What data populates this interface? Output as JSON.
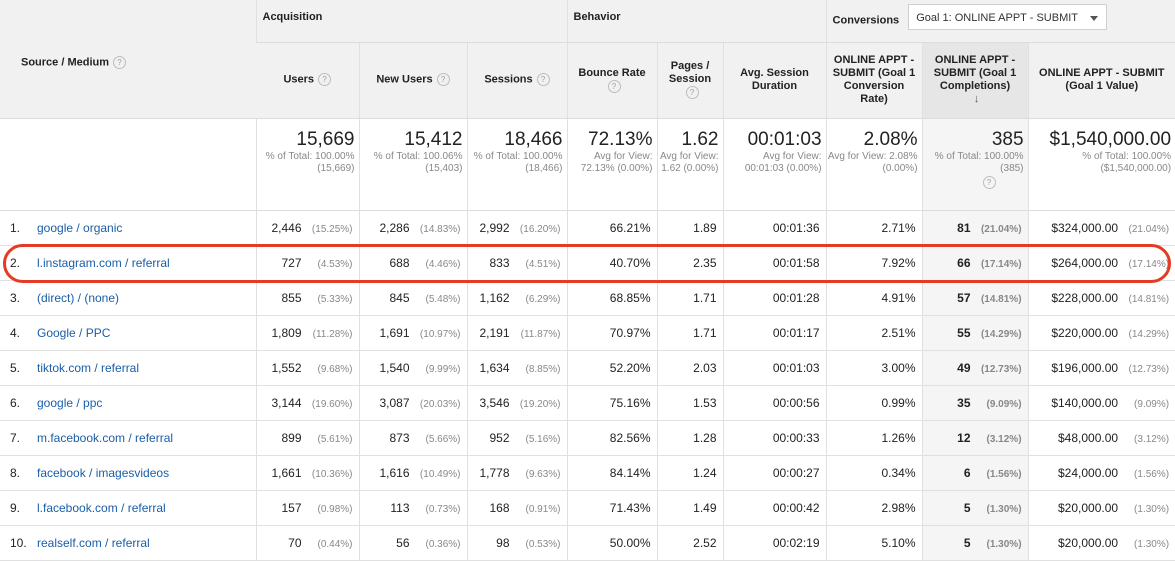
{
  "header": {
    "source_medium": "Source / Medium",
    "group_acquisition": "Acquisition",
    "group_behavior": "Behavior",
    "group_conversions": "Conversions",
    "goal_select_value": "Goal 1: ONLINE APPT - SUBMIT",
    "help_glyph": "?",
    "sort_arrow": "↓",
    "col_users": "Users",
    "col_new_users": "New Users",
    "col_sessions": "Sessions",
    "col_bounce": "Bounce Rate",
    "col_pages": "Pages / Session",
    "col_avg": "Avg. Session Duration",
    "col_conv_rate": "ONLINE APPT - SUBMIT (Goal 1 Conversion Rate)",
    "col_completions": "ONLINE APPT - SUBMIT (Goal 1 Completions)",
    "col_value": "ONLINE APPT - SUBMIT (Goal 1 Value)"
  },
  "totals": {
    "users": {
      "value": "15,669",
      "sub": "% of Total: 100.00% (15,669)"
    },
    "new_users": {
      "value": "15,412",
      "sub": "% of Total: 100.06% (15,403)"
    },
    "sessions": {
      "value": "18,466",
      "sub": "% of Total: 100.00% (18,466)"
    },
    "bounce": {
      "value": "72.13%",
      "sub": "Avg for View: 72.13% (0.00%)"
    },
    "pages": {
      "value": "1.62",
      "sub": "Avg for View: 1.62 (0.00%)"
    },
    "avg": {
      "value": "00:01:03",
      "sub": "Avg for View: 00:01:03 (0.00%)"
    },
    "conv_rate": {
      "value": "2.08%",
      "sub": "Avg for View: 2.08% (0.00%)"
    },
    "completions": {
      "value": "385",
      "sub": "% of Total: 100.00% (385)"
    },
    "value": {
      "value": "$1,540,000.00",
      "sub": "% of Total: 100.00% ($1,540,000.00)"
    }
  },
  "rows": [
    {
      "idx": "1.",
      "source": "google / organic",
      "users": "2,446",
      "users_pct": "(15.25%)",
      "new_users": "2,286",
      "new_users_pct": "(14.83%)",
      "sessions": "2,992",
      "sessions_pct": "(16.20%)",
      "bounce": "66.21%",
      "pages": "1.89",
      "avg": "00:01:36",
      "conv_rate": "2.71%",
      "completions": "81",
      "completions_pct": "(21.04%)",
      "value": "$324,000.00",
      "value_pct": "(21.04%)"
    },
    {
      "idx": "2.",
      "source": "l.instagram.com / referral",
      "users": "727",
      "users_pct": "(4.53%)",
      "new_users": "688",
      "new_users_pct": "(4.46%)",
      "sessions": "833",
      "sessions_pct": "(4.51%)",
      "bounce": "40.70%",
      "pages": "2.35",
      "avg": "00:01:58",
      "conv_rate": "7.92%",
      "completions": "66",
      "completions_pct": "(17.14%)",
      "value": "$264,000.00",
      "value_pct": "(17.14%)"
    },
    {
      "idx": "3.",
      "source": "(direct) / (none)",
      "users": "855",
      "users_pct": "(5.33%)",
      "new_users": "845",
      "new_users_pct": "(5.48%)",
      "sessions": "1,162",
      "sessions_pct": "(6.29%)",
      "bounce": "68.85%",
      "pages": "1.71",
      "avg": "00:01:28",
      "conv_rate": "4.91%",
      "completions": "57",
      "completions_pct": "(14.81%)",
      "value": "$228,000.00",
      "value_pct": "(14.81%)"
    },
    {
      "idx": "4.",
      "source": "Google / PPC",
      "users": "1,809",
      "users_pct": "(11.28%)",
      "new_users": "1,691",
      "new_users_pct": "(10.97%)",
      "sessions": "2,191",
      "sessions_pct": "(11.87%)",
      "bounce": "70.97%",
      "pages": "1.71",
      "avg": "00:01:17",
      "conv_rate": "2.51%",
      "completions": "55",
      "completions_pct": "(14.29%)",
      "value": "$220,000.00",
      "value_pct": "(14.29%)"
    },
    {
      "idx": "5.",
      "source": "tiktok.com / referral",
      "users": "1,552",
      "users_pct": "(9.68%)",
      "new_users": "1,540",
      "new_users_pct": "(9.99%)",
      "sessions": "1,634",
      "sessions_pct": "(8.85%)",
      "bounce": "52.20%",
      "pages": "2.03",
      "avg": "00:01:03",
      "conv_rate": "3.00%",
      "completions": "49",
      "completions_pct": "(12.73%)",
      "value": "$196,000.00",
      "value_pct": "(12.73%)"
    },
    {
      "idx": "6.",
      "source": "google / ppc",
      "users": "3,144",
      "users_pct": "(19.60%)",
      "new_users": "3,087",
      "new_users_pct": "(20.03%)",
      "sessions": "3,546",
      "sessions_pct": "(19.20%)",
      "bounce": "75.16%",
      "pages": "1.53",
      "avg": "00:00:56",
      "conv_rate": "0.99%",
      "completions": "35",
      "completions_pct": "(9.09%)",
      "value": "$140,000.00",
      "value_pct": "(9.09%)"
    },
    {
      "idx": "7.",
      "source": "m.facebook.com / referral",
      "users": "899",
      "users_pct": "(5.61%)",
      "new_users": "873",
      "new_users_pct": "(5.66%)",
      "sessions": "952",
      "sessions_pct": "(5.16%)",
      "bounce": "82.56%",
      "pages": "1.28",
      "avg": "00:00:33",
      "conv_rate": "1.26%",
      "completions": "12",
      "completions_pct": "(3.12%)",
      "value": "$48,000.00",
      "value_pct": "(3.12%)"
    },
    {
      "idx": "8.",
      "source": "facebook / imagesvideos",
      "users": "1,661",
      "users_pct": "(10.36%)",
      "new_users": "1,616",
      "new_users_pct": "(10.49%)",
      "sessions": "1,778",
      "sessions_pct": "(9.63%)",
      "bounce": "84.14%",
      "pages": "1.24",
      "avg": "00:00:27",
      "conv_rate": "0.34%",
      "completions": "6",
      "completions_pct": "(1.56%)",
      "value": "$24,000.00",
      "value_pct": "(1.56%)"
    },
    {
      "idx": "9.",
      "source": "l.facebook.com / referral",
      "users": "157",
      "users_pct": "(0.98%)",
      "new_users": "113",
      "new_users_pct": "(0.73%)",
      "sessions": "168",
      "sessions_pct": "(0.91%)",
      "bounce": "71.43%",
      "pages": "1.49",
      "avg": "00:00:42",
      "conv_rate": "2.98%",
      "completions": "5",
      "completions_pct": "(1.30%)",
      "value": "$20,000.00",
      "value_pct": "(1.30%)"
    },
    {
      "idx": "10.",
      "source": "realself.com / referral",
      "users": "70",
      "users_pct": "(0.44%)",
      "new_users": "56",
      "new_users_pct": "(0.36%)",
      "sessions": "98",
      "sessions_pct": "(0.53%)",
      "bounce": "50.00%",
      "pages": "2.52",
      "avg": "00:02:19",
      "conv_rate": "5.10%",
      "completions": "5",
      "completions_pct": "(1.30%)",
      "value": "$20,000.00",
      "value_pct": "(1.30%)"
    }
  ],
  "colors": {
    "link": "#1a5ea8",
    "highlight": "#e53a25",
    "header_bg": "#f1f1f1"
  }
}
